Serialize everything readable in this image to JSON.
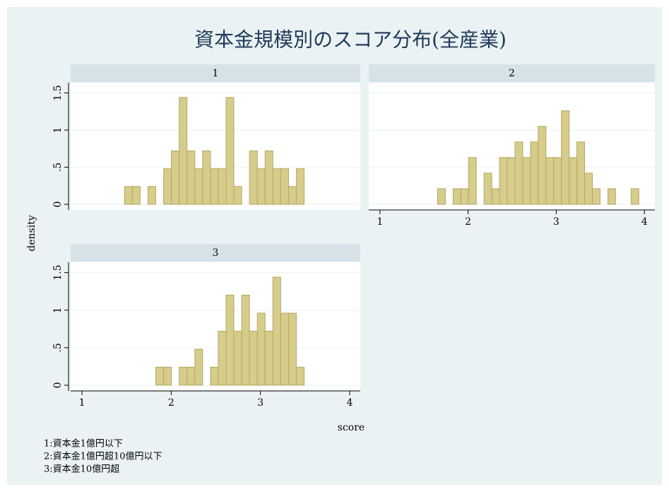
{
  "figure": {
    "title": "資本金規模別のスコア分布(全産業)",
    "xlabel": "score",
    "ylabel": "density",
    "notes": [
      "1:資本金1億円以下",
      "2:資本金1億円超10億円以下",
      "3:資本金10億円超"
    ]
  },
  "chart_data": [
    {
      "type": "histogram",
      "title": "1",
      "color": "#d6cc8c",
      "bins": [
        1.477,
        1.565,
        1.652,
        1.74,
        1.827,
        1.915,
        2.002,
        2.09,
        2.177,
        2.265,
        2.352,
        2.44,
        2.527,
        2.615,
        2.702,
        2.79,
        2.877,
        2.965,
        3.052,
        3.14,
        3.227,
        3.315,
        3.402,
        3.49
      ],
      "values": [
        0.24,
        0.24,
        0,
        0.24,
        0,
        0.48,
        0.72,
        1.44,
        0.72,
        0.48,
        0.72,
        0.48,
        0.48,
        1.44,
        0.24,
        0,
        0.72,
        0.48,
        0.72,
        0.48,
        0.48,
        0.24,
        0.48
      ],
      "xlim": [
        0.873,
        4.119
      ],
      "ylim": [
        -0.076,
        1.638
      ],
      "xticks": [
        1,
        2,
        3,
        4
      ],
      "yticks": [
        0,
        {
          "value": 0.5,
          "label": ".5"
        },
        1,
        1.5
      ],
      "grid": true
    },
    {
      "type": "histogram",
      "title": "2",
      "color": "#d6cc8c",
      "bins": [
        1.654,
        1.742,
        1.83,
        1.917,
        2.005,
        2.093,
        2.181,
        2.269,
        2.356,
        2.444,
        2.532,
        2.62,
        2.708,
        2.795,
        2.883,
        2.971,
        3.059,
        3.147,
        3.234,
        3.322,
        3.41,
        3.498,
        3.586,
        3.673,
        3.761,
        3.849,
        3.937
      ],
      "values": [
        0.21,
        0,
        0.21,
        0.21,
        0.63,
        0,
        0.42,
        0.21,
        0.63,
        0.63,
        0.84,
        0.63,
        0.84,
        1.05,
        0.63,
        0.63,
        1.26,
        0.63,
        0.84,
        0.42,
        0.21,
        0,
        0.21,
        0,
        0,
        0.21
      ],
      "xlim": [
        0.873,
        4.119
      ],
      "ylim": [
        -0.076,
        1.638
      ],
      "xticks": [
        1,
        2,
        3,
        4
      ],
      "yticks": [
        0,
        {
          "value": 0.5,
          "label": ".5"
        },
        1,
        1.5
      ],
      "grid": true
    },
    {
      "type": "histogram",
      "title": "3",
      "color": "#d6cc8c",
      "bins": [
        1.827,
        1.915,
        2.002,
        2.09,
        2.177,
        2.265,
        2.352,
        2.44,
        2.527,
        2.615,
        2.702,
        2.79,
        2.877,
        2.965,
        3.052,
        3.14,
        3.227,
        3.315,
        3.402,
        3.49
      ],
      "values": [
        0.24,
        0.24,
        0,
        0.24,
        0.24,
        0.48,
        0,
        0.24,
        0.72,
        1.2,
        0.72,
        1.2,
        0.72,
        0.96,
        0.72,
        1.44,
        0.96,
        0.96,
        0.24
      ],
      "xlim": [
        0.873,
        4.119
      ],
      "ylim": [
        -0.076,
        1.638
      ],
      "xticks": [
        1,
        2,
        3,
        4
      ],
      "yticks": [
        0,
        {
          "value": 0.5,
          "label": ".5"
        },
        1,
        1.5
      ],
      "grid": true
    }
  ]
}
